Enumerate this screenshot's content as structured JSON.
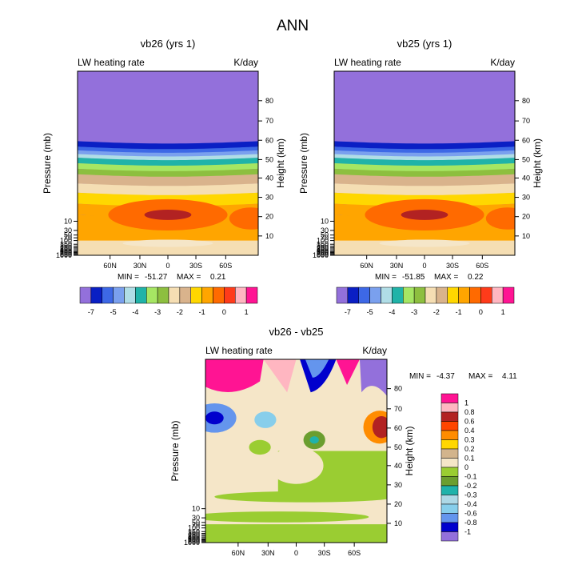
{
  "chart_data": {
    "type": "heatmap",
    "suptitle": "ANN",
    "panels": [
      {
        "title": "vb26 (yrs 1)",
        "left_label": "LW heating rate",
        "right_label": "K/day",
        "ylabel": "Pressure (mb)",
        "ylabel_right": "Height (km)",
        "pressure_ticks": [
          "10",
          "30",
          "50",
          "70",
          "100",
          "150",
          "200",
          "250",
          "300",
          "400",
          "500",
          "600",
          "700",
          "850",
          "1000"
        ],
        "height_ticks": [
          "10",
          "20",
          "30",
          "40",
          "50",
          "60",
          "70",
          "80"
        ],
        "lat_ticks": [
          "60N",
          "30N",
          "0",
          "30S",
          "60S"
        ],
        "min_label": "MIN =",
        "min_value": "-51.27",
        "max_label": "MAX =",
        "max_value": "0.21",
        "colorbar_labels": [
          "-7",
          "-5",
          "-4",
          "-3",
          "-2",
          "-1",
          "0",
          "1"
        ]
      },
      {
        "title": "vb25 (yrs 1)",
        "left_label": "LW heating rate",
        "right_label": "K/day",
        "ylabel": "Pressure (mb)",
        "ylabel_right": "Height (km)",
        "pressure_ticks": [
          "10",
          "30",
          "50",
          "70",
          "100",
          "150",
          "200",
          "250",
          "300",
          "400",
          "500",
          "600",
          "700",
          "850",
          "1000"
        ],
        "height_ticks": [
          "10",
          "20",
          "30",
          "40",
          "50",
          "60",
          "70",
          "80"
        ],
        "lat_ticks": [
          "60N",
          "30N",
          "0",
          "30S",
          "60S"
        ],
        "min_label": "MIN =",
        "min_value": "-51.85",
        "max_label": "MAX =",
        "max_value": "0.22",
        "colorbar_labels": [
          "-7",
          "-5",
          "-4",
          "-3",
          "-2",
          "-1",
          "0",
          "1"
        ]
      },
      {
        "title": "vb26 - vb25",
        "left_label": "LW heating rate",
        "right_label": "K/day",
        "ylabel": "Pressure (mb)",
        "ylabel_right": "Height (km)",
        "pressure_ticks": [
          "10",
          "30",
          "50",
          "70",
          "100",
          "150",
          "200",
          "250",
          "300",
          "400",
          "500",
          "600",
          "700",
          "850",
          "1000"
        ],
        "height_ticks": [
          "10",
          "20",
          "30",
          "40",
          "50",
          "60",
          "70",
          "80"
        ],
        "lat_ticks": [
          "60N",
          "30N",
          "0",
          "30S",
          "60S"
        ],
        "min_label": "MIN =",
        "min_value": "-4.37",
        "max_label": "MAX =",
        "max_value": "4.11",
        "colorbar_labels": [
          "1",
          "0.8",
          "0.6",
          "0.4",
          "0.3",
          "0.2",
          "0.1",
          "0",
          "-0.1",
          "-0.2",
          "-0.3",
          "-0.4",
          "-0.6",
          "-0.8",
          "-1"
        ]
      }
    ],
    "main_palette": [
      "#9370db",
      "#0a1fc4",
      "#3d68e6",
      "#7aa0ee",
      "#b0dde6",
      "#20b3a8",
      "#a6e663",
      "#8dbf3f",
      "#f5deb3",
      "#d9b38c",
      "#ffd700",
      "#ffa500",
      "#ff6a00",
      "#ff3b1a",
      "#ffb6c1",
      "#ff1493"
    ],
    "diff_palette": [
      "#ff1493",
      "#ffb6c1",
      "#b22222",
      "#ff4500",
      "#ff8c00",
      "#ffd700",
      "#d2b48c",
      "#f5e6c8",
      "#9acd32",
      "#6b9e2f",
      "#20b2aa",
      "#add8e6",
      "#87ceeb",
      "#6495ed",
      "#0000cd",
      "#9370db"
    ]
  }
}
